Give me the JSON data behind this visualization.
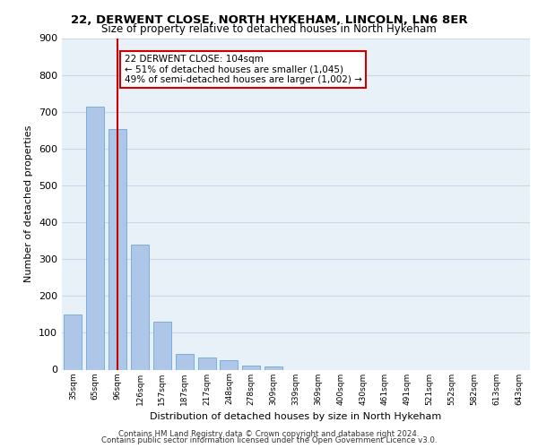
{
  "title1": "22, DERWENT CLOSE, NORTH HYKEHAM, LINCOLN, LN6 8ER",
  "title2": "Size of property relative to detached houses in North Hykeham",
  "xlabel": "Distribution of detached houses by size in North Hykeham",
  "ylabel": "Number of detached properties",
  "bar_values": [
    150,
    713,
    652,
    340,
    130,
    42,
    33,
    25,
    10,
    8,
    0,
    0,
    0,
    0,
    0,
    0,
    0,
    0,
    0,
    0,
    0
  ],
  "categories": [
    "35sqm",
    "65sqm",
    "96sqm",
    "126sqm",
    "157sqm",
    "187sqm",
    "217sqm",
    "248sqm",
    "278sqm",
    "309sqm",
    "339sqm",
    "369sqm",
    "400sqm",
    "430sqm",
    "461sqm",
    "491sqm",
    "521sqm",
    "552sqm",
    "582sqm",
    "613sqm",
    "643sqm"
  ],
  "bar_color": "#aec6e8",
  "bar_edge_color": "#5a9fd4",
  "vline_x": 2,
  "vline_color": "#cc0000",
  "annotation_line1": "22 DERWENT CLOSE: 104sqm",
  "annotation_line2": "← 51% of detached houses are smaller (1,045)",
  "annotation_line3": "49% of semi-detached houses are larger (1,002) →",
  "annotation_box_color": "#cc0000",
  "annotation_box_bg": "#ffffff",
  "grid_color": "#c8d8e8",
  "bg_color": "#e8f0f8",
  "footer1": "Contains HM Land Registry data © Crown copyright and database right 2024.",
  "footer2": "Contains public sector information licensed under the Open Government Licence v3.0.",
  "ylim": [
    0,
    900
  ],
  "yticks": [
    0,
    100,
    200,
    300,
    400,
    500,
    600,
    700,
    800,
    900
  ]
}
